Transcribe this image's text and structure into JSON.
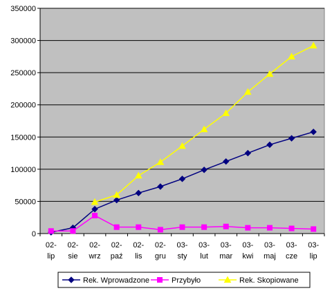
{
  "chart_data": {
    "type": "line",
    "title": "",
    "xlabel": "",
    "ylabel": "",
    "categories": [
      "02-lip",
      "02-sie",
      "02-wrz",
      "02-paź",
      "02-lis",
      "02-gru",
      "03-sty",
      "03-lut",
      "03-mar",
      "03-kwi",
      "03-maj",
      "03-cze",
      "03-lip"
    ],
    "category_lines": [
      [
        "02-",
        "lip"
      ],
      [
        "02-",
        "sie"
      ],
      [
        "02-",
        "wrz"
      ],
      [
        "02-",
        "paź"
      ],
      [
        "02-",
        "lis"
      ],
      [
        "02-",
        "gru"
      ],
      [
        "03-",
        "sty"
      ],
      [
        "03-",
        "lut"
      ],
      [
        "03-",
        "mar"
      ],
      [
        "03-",
        "kwi"
      ],
      [
        "03-",
        "maj"
      ],
      [
        "03-",
        "cze"
      ],
      [
        "03-",
        "lip"
      ]
    ],
    "ylim": [
      0,
      350000
    ],
    "yticks": [
      0,
      50000,
      100000,
      150000,
      200000,
      250000,
      300000,
      350000
    ],
    "ytick_labels": [
      "0",
      "50000",
      "100000",
      "150000",
      "200000",
      "250000",
      "300000",
      "350000"
    ],
    "grid": "horizontal",
    "legend_position": "bottom",
    "plot_background": "#c0c0c0",
    "series": [
      {
        "name": "Rek. Wprowadzone",
        "color": "#000080",
        "marker": "diamond",
        "values": [
          2000,
          9000,
          38000,
          52000,
          63000,
          73000,
          85000,
          99000,
          112000,
          125000,
          138000,
          148000,
          158000
        ]
      },
      {
        "name": "Przybyło",
        "color": "#ff00ff",
        "marker": "square",
        "values": [
          4000,
          4000,
          28000,
          10000,
          10000,
          6000,
          10000,
          10000,
          11000,
          9000,
          9000,
          8000,
          7000
        ]
      },
      {
        "name": "Rek. Skopiowane",
        "color": "#ffff00",
        "marker": "triangle",
        "values": [
          null,
          null,
          49000,
          60000,
          90000,
          111000,
          136000,
          162000,
          187000,
          220000,
          248000,
          275000,
          292000
        ]
      }
    ]
  }
}
